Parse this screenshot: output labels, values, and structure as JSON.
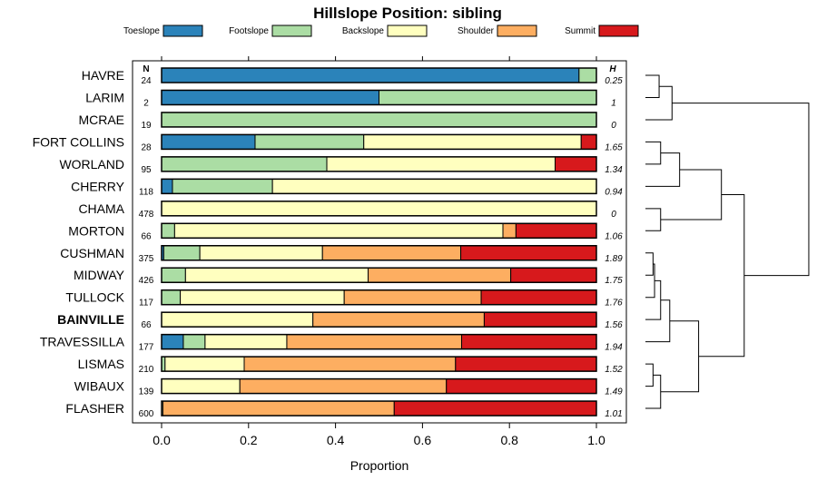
{
  "chart_data": {
    "type": "bar",
    "orientation": "horizontal",
    "stacked": true,
    "title": "Hillslope Position: sibling",
    "xlabel": "Proportion",
    "xlim": [
      0,
      1
    ],
    "xticks": [
      "0.0",
      "0.2",
      "0.4",
      "0.6",
      "0.8",
      "1.0"
    ],
    "xtick_values": [
      0,
      0.2,
      0.4,
      0.6,
      0.8,
      1.0
    ],
    "n_header": "N",
    "h_header": "H",
    "legend_position": "top",
    "series": [
      {
        "name": "Toeslope",
        "color": "#2b83ba"
      },
      {
        "name": "Footslope",
        "color": "#abdda4"
      },
      {
        "name": "Backslope",
        "color": "#ffffbf"
      },
      {
        "name": "Shoulder",
        "color": "#fdae61"
      },
      {
        "name": "Summit",
        "color": "#d7191c"
      }
    ],
    "categories": [
      {
        "name": "HAVRE",
        "n": "24",
        "h": "0.25",
        "bold": false,
        "values": [
          0.96,
          0.04,
          0,
          0,
          0
        ]
      },
      {
        "name": "LARIM",
        "n": "2",
        "h": "1",
        "bold": false,
        "values": [
          0.5,
          0.5,
          0,
          0,
          0
        ]
      },
      {
        "name": "MCRAE",
        "n": "19",
        "h": "0",
        "bold": false,
        "values": [
          0,
          1.0,
          0,
          0,
          0
        ]
      },
      {
        "name": "FORT COLLINS",
        "n": "28",
        "h": "1.65",
        "bold": false,
        "values": [
          0.215,
          0.25,
          0.5,
          0,
          0.035
        ]
      },
      {
        "name": "WORLAND",
        "n": "95",
        "h": "1.34",
        "bold": false,
        "values": [
          0,
          0.38,
          0.525,
          0,
          0.095
        ]
      },
      {
        "name": "CHERRY",
        "n": "118",
        "h": "0.94",
        "bold": false,
        "values": [
          0.025,
          0.23,
          0.745,
          0,
          0
        ]
      },
      {
        "name": "CHAMA",
        "n": "478",
        "h": "0",
        "bold": false,
        "values": [
          0,
          0,
          1.0,
          0,
          0
        ]
      },
      {
        "name": "MORTON",
        "n": "66",
        "h": "1.06",
        "bold": false,
        "values": [
          0,
          0.03,
          0.755,
          0.03,
          0.185
        ]
      },
      {
        "name": "CUSHMAN",
        "n": "375",
        "h": "1.89",
        "bold": false,
        "values": [
          0.005,
          0.083,
          0.282,
          0.318,
          0.312
        ]
      },
      {
        "name": "MIDWAY",
        "n": "426",
        "h": "1.75",
        "bold": false,
        "values": [
          0,
          0.055,
          0.42,
          0.328,
          0.197
        ]
      },
      {
        "name": "TULLOCK",
        "n": "117",
        "h": "1.76",
        "bold": false,
        "values": [
          0,
          0.043,
          0.377,
          0.315,
          0.265
        ]
      },
      {
        "name": "BAINVILLE",
        "n": "66",
        "h": "1.56",
        "bold": true,
        "values": [
          0,
          0,
          0.348,
          0.394,
          0.258
        ]
      },
      {
        "name": "TRAVESSILLA",
        "n": "177",
        "h": "1.94",
        "bold": false,
        "values": [
          0.05,
          0.05,
          0.188,
          0.402,
          0.31
        ]
      },
      {
        "name": "LISMAS",
        "n": "210",
        "h": "1.52",
        "bold": false,
        "values": [
          0,
          0.008,
          0.182,
          0.486,
          0.324
        ]
      },
      {
        "name": "WIBAUX",
        "n": "139",
        "h": "1.49",
        "bold": false,
        "values": [
          0,
          0,
          0.18,
          0.475,
          0.345
        ]
      },
      {
        "name": "FLASHER",
        "n": "600",
        "h": "1.01",
        "bold": false,
        "values": [
          0,
          0,
          0.003,
          0.532,
          0.465
        ]
      }
    ],
    "dendrogram": {
      "description": "hierarchical clustering of categories shown on the right",
      "merges": [
        [
          [
            0
          ],
          [
            1
          ],
          0.18
        ],
        [
          [
            0,
            1
          ],
          [
            2
          ],
          0.35
        ],
        [
          [
            3
          ],
          [
            4
          ],
          0.2
        ],
        [
          [
            3,
            4
          ],
          [
            5
          ],
          0.45
        ],
        [
          [
            6
          ],
          [
            7
          ],
          0.2
        ],
        [
          [
            3,
            4,
            5
          ],
          [
            6,
            7
          ],
          1.0
        ],
        [
          [
            8
          ],
          [
            9
          ],
          0.1
        ],
        [
          [
            8,
            9
          ],
          [
            10
          ],
          0.12
        ],
        [
          [
            8,
            9,
            10
          ],
          [
            11
          ],
          0.2
        ],
        [
          [
            8,
            9,
            10,
            11
          ],
          [
            12
          ],
          0.32
        ],
        [
          [
            13
          ],
          [
            14
          ],
          0.1
        ],
        [
          [
            13,
            14
          ],
          [
            15
          ],
          0.2
        ],
        [
          [
            8,
            9,
            10,
            11,
            12
          ],
          [
            13,
            14,
            15
          ],
          0.7
        ],
        [
          [
            3,
            4,
            5,
            6,
            7
          ],
          [
            8,
            9,
            10,
            11,
            12,
            13,
            14,
            15
          ],
          1.3
        ],
        [
          [
            0,
            1,
            2
          ],
          [
            3,
            4,
            5,
            6,
            7,
            8,
            9,
            10,
            11,
            12,
            13,
            14,
            15
          ],
          2.15
        ]
      ]
    }
  }
}
